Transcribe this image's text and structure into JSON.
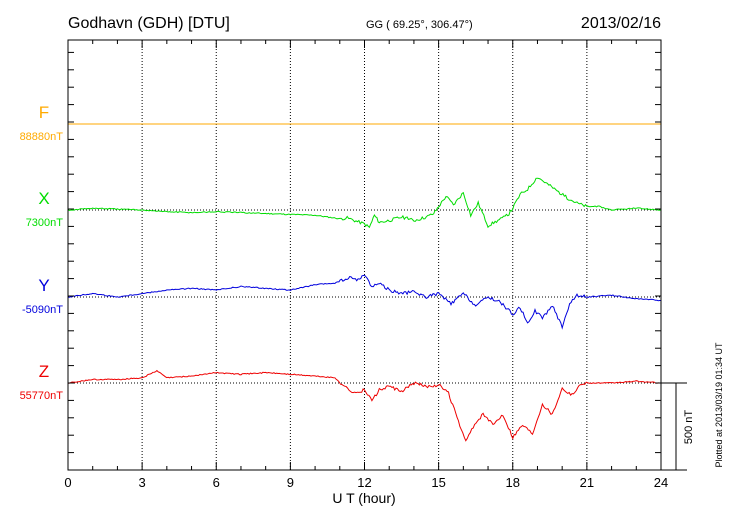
{
  "header": {
    "station": "Godhavn (GDH)  [DTU]",
    "coords": "GG ( 69.25°, 306.47°)",
    "date": "2013/02/16"
  },
  "plotted_note": "Plotted at 2013/03/19 01:34 UT",
  "chart_data": {
    "type": "line",
    "xlabel": "U T (hour)",
    "xlim": [
      0,
      24
    ],
    "xticks": [
      "0",
      "3",
      "6",
      "9",
      "12",
      "15",
      "18",
      "21",
      "24"
    ],
    "scale_bar": {
      "label": "500 nT",
      "value_nT": 500
    },
    "colors": {
      "F": "#ffaa00",
      "X": "#00dd00",
      "Y": "#0000dd",
      "Z": "#ee0000"
    },
    "series": [
      {
        "name": "F",
        "baseline_label": "88880nT",
        "baseline_nT": 88880,
        "x": [
          0,
          24
        ],
        "y": [
          0,
          0
        ]
      },
      {
        "name": "X",
        "baseline_label": "7300nT",
        "baseline_nT": 7300,
        "x": [
          0,
          1,
          2,
          3,
          4,
          5,
          6,
          7,
          8,
          9,
          10,
          10.5,
          11,
          11.3,
          11.6,
          12,
          12.2,
          12.4,
          12.6,
          13,
          13.5,
          14,
          14.5,
          14.8,
          15,
          15.3,
          15.6,
          16,
          16.3,
          16.6,
          17,
          17.4,
          17.8,
          18,
          18.3,
          18.6,
          19,
          19.4,
          19.8,
          20.2,
          20.6,
          21,
          21.5,
          22,
          23,
          24
        ],
        "y": [
          0,
          10,
          5,
          0,
          -10,
          -15,
          -10,
          -15,
          -20,
          -25,
          -30,
          -40,
          -50,
          -45,
          -60,
          -80,
          -100,
          -30,
          -70,
          -60,
          -40,
          -60,
          -40,
          -20,
          20,
          80,
          30,
          100,
          -30,
          40,
          -90,
          -60,
          -30,
          10,
          90,
          120,
          190,
          150,
          110,
          70,
          40,
          20,
          20,
          0,
          10,
          0
        ]
      },
      {
        "name": "Y",
        "baseline_label": "-5090nT",
        "baseline_nT": -5090,
        "x": [
          0,
          1,
          2,
          3,
          4,
          5,
          6,
          7,
          8,
          9,
          10,
          10.8,
          11.4,
          11.8,
          12,
          12.3,
          12.6,
          13,
          13.5,
          14,
          14.5,
          15,
          15.5,
          16,
          16.5,
          17,
          17.5,
          18,
          18.3,
          18.6,
          18.9,
          19.2,
          19.6,
          20,
          20.3,
          20.6,
          21,
          22,
          23,
          24
        ],
        "y": [
          0,
          20,
          0,
          20,
          40,
          50,
          40,
          60,
          50,
          40,
          70,
          80,
          110,
          100,
          130,
          60,
          80,
          40,
          20,
          30,
          0,
          20,
          -40,
          20,
          -50,
          0,
          -30,
          -100,
          -60,
          -150,
          -80,
          -120,
          -50,
          -170,
          -40,
          10,
          0,
          10,
          -10,
          -20
        ]
      },
      {
        "name": "Z",
        "baseline_label": "55770nT",
        "baseline_nT": 55770,
        "x": [
          0,
          1,
          2,
          3,
          3.6,
          4,
          5,
          6,
          7,
          8,
          9,
          10,
          10.8,
          11.2,
          11.6,
          12,
          12.3,
          12.6,
          13,
          13.5,
          14,
          14.5,
          15,
          15.4,
          15.8,
          16.1,
          16.4,
          16.8,
          17.2,
          17.6,
          18,
          18.4,
          18.8,
          19.2,
          19.6,
          20,
          20.4,
          20.8,
          21.2,
          22,
          23,
          24
        ],
        "y": [
          0,
          20,
          20,
          30,
          70,
          30,
          40,
          60,
          50,
          60,
          50,
          40,
          30,
          -20,
          -60,
          -40,
          -100,
          -40,
          -20,
          -50,
          0,
          -20,
          -10,
          -60,
          -220,
          -340,
          -250,
          -180,
          -240,
          -180,
          -310,
          -240,
          -290,
          -120,
          -180,
          -30,
          -70,
          0,
          0,
          0,
          10,
          0
        ]
      }
    ]
  }
}
